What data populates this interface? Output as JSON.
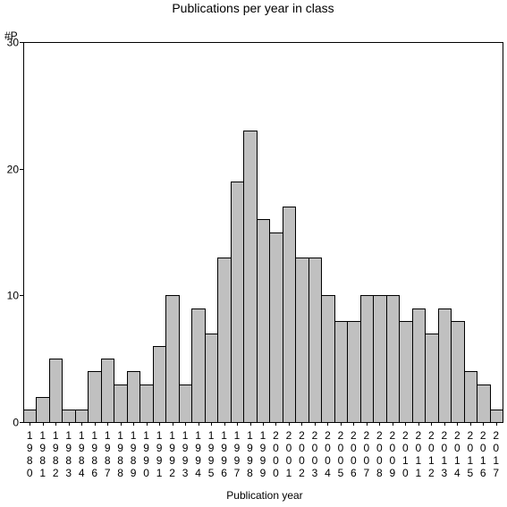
{
  "chart_data": {
    "type": "bar",
    "title": "Publications per year in class",
    "ylabel": "#P",
    "xlabel": "Publication year",
    "ylim": [
      0,
      30
    ],
    "yticks": [
      0,
      10,
      20,
      30
    ],
    "grid": false,
    "bar_color": "#c0c0c0",
    "categories": [
      "1980",
      "1981",
      "1982",
      "1983",
      "1984",
      "1986",
      "1987",
      "1988",
      "1989",
      "1990",
      "1991",
      "1992",
      "1993",
      "1994",
      "1995",
      "1996",
      "1997",
      "1998",
      "1999",
      "2000",
      "2001",
      "2002",
      "2003",
      "2004",
      "2005",
      "2006",
      "2007",
      "2008",
      "2009",
      "2010",
      "2011",
      "2012",
      "2013",
      "2014",
      "2015",
      "2016",
      "2017"
    ],
    "values": [
      1,
      2,
      5,
      1,
      1,
      4,
      5,
      3,
      4,
      3,
      6,
      10,
      3,
      9,
      7,
      13,
      19,
      23,
      16,
      15,
      17,
      13,
      13,
      10,
      8,
      8,
      10,
      10,
      10,
      8,
      9,
      7,
      9,
      8,
      4,
      3,
      1
    ]
  }
}
